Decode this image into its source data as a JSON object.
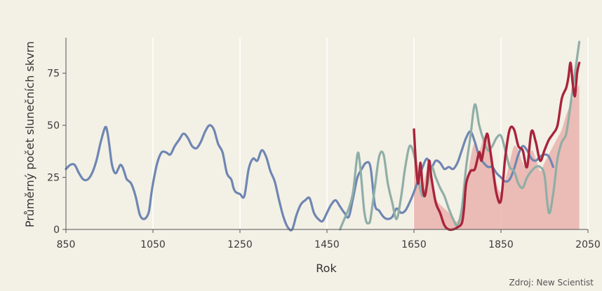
{
  "chart_data": {
    "type": "line",
    "xlabel": "Rok",
    "ylabel": "Průměrný počet slunečních skvrn",
    "source_note": "Zdroj: New Scientist",
    "xlim": [
      850,
      2050
    ],
    "ylim": [
      0,
      90
    ],
    "x_ticks": [
      850,
      1050,
      1250,
      1450,
      1650,
      1850,
      2050
    ],
    "y_ticks": [
      0,
      25,
      50,
      75
    ],
    "grid": "vertical",
    "colors": {
      "background": "#f3f0e6",
      "grid": "#ffffff",
      "blue": "#6f86b2",
      "teal": "#8faea6",
      "red": "#a8243a",
      "fill": "#e8a9a4"
    },
    "series": [
      {
        "color": "#6f86b2",
        "x": [
          850,
          860,
          870,
          880,
          890,
          900,
          910,
          920,
          930,
          940,
          945,
          950,
          955,
          960,
          965,
          970,
          975,
          980,
          985,
          990,
          1000,
          1010,
          1020,
          1030,
          1040,
          1045,
          1050,
          1060,
          1070,
          1080,
          1090,
          1100,
          1110,
          1120,
          1130,
          1140,
          1150,
          1160,
          1170,
          1180,
          1190,
          1200,
          1210,
          1220,
          1230,
          1235,
          1240,
          1250,
          1260,
          1270,
          1280,
          1290,
          1300,
          1310,
          1320,
          1330,
          1340,
          1350,
          1360,
          1370,
          1380,
          1390,
          1400,
          1410,
          1420,
          1430,
          1440,
          1450,
          1460,
          1470,
          1480,
          1490,
          1500,
          1510,
          1520,
          1530,
          1540,
          1550,
          1560,
          1570,
          1580,
          1590,
          1600,
          1610,
          1620,
          1630,
          1640,
          1650,
          1660,
          1670,
          1680,
          1690,
          1700,
          1710,
          1720,
          1730,
          1740,
          1750,
          1760,
          1770,
          1780,
          1790,
          1800,
          1810,
          1820,
          1830,
          1840,
          1850,
          1860,
          1870,
          1880,
          1890,
          1900,
          1910,
          1920,
          1930,
          1940,
          1950,
          1960,
          1970
        ],
        "y": [
          29,
          31,
          31,
          27,
          24,
          24,
          27,
          33,
          42,
          49,
          47,
          40,
          32,
          28,
          27,
          29,
          31,
          30,
          27,
          24,
          22,
          16,
          7,
          5,
          8,
          15,
          22,
          32,
          37,
          37,
          36,
          40,
          43,
          46,
          44,
          40,
          39,
          42,
          47,
          50,
          48,
          41,
          37,
          27,
          24,
          20,
          18,
          17,
          16,
          29,
          34,
          33,
          38,
          35,
          28,
          23,
          14,
          6,
          1,
          0,
          7,
          12,
          14,
          15,
          8,
          5,
          4,
          8,
          12,
          14,
          11,
          8,
          6,
          15,
          25,
          29,
          32,
          30,
          12,
          9,
          6,
          5,
          6,
          10,
          8,
          9,
          13,
          18,
          24,
          30,
          34,
          30,
          33,
          32,
          29,
          30,
          29,
          32,
          38,
          44,
          47,
          42,
          35,
          32,
          30,
          30,
          27,
          25,
          23,
          24,
          29,
          36,
          40,
          38,
          34,
          33,
          35,
          36,
          35,
          30
        ]
      },
      {
        "color": "#8faea6",
        "x": [
          1480,
          1490,
          1500,
          1510,
          1520,
          1525,
          1530,
          1535,
          1540,
          1545,
          1550,
          1560,
          1570,
          1580,
          1590,
          1600,
          1610,
          1620,
          1630,
          1640,
          1650,
          1660,
          1670,
          1680,
          1690,
          1700,
          1710,
          1720,
          1730,
          1740,
          1750,
          1760,
          1770,
          1780,
          1790,
          1800,
          1810,
          1820,
          1830,
          1840,
          1850,
          1860,
          1870,
          1880,
          1890,
          1900,
          1910,
          1920,
          1930,
          1940,
          1950,
          1960,
          1970,
          1980,
          1990,
          2000,
          2010,
          2020,
          2030
        ],
        "y": [
          0,
          5,
          10,
          18,
          36,
          33,
          22,
          10,
          4,
          3,
          5,
          20,
          35,
          36,
          22,
          13,
          5,
          15,
          30,
          40,
          36,
          24,
          16,
          21,
          30,
          25,
          20,
          16,
          10,
          5,
          2,
          10,
          30,
          45,
          60,
          50,
          43,
          38,
          40,
          44,
          45,
          38,
          30,
          28,
          22,
          20,
          25,
          28,
          30,
          30,
          26,
          8,
          17,
          34,
          42,
          46,
          60,
          75,
          90
        ]
      },
      {
        "color": "#a8243a",
        "x": [
          1650,
          1655,
          1660,
          1665,
          1670,
          1675,
          1680,
          1685,
          1690,
          1700,
          1710,
          1720,
          1730,
          1740,
          1750,
          1760,
          1765,
          1770,
          1780,
          1790,
          1800,
          1805,
          1810,
          1815,
          1820,
          1830,
          1840,
          1850,
          1860,
          1870,
          1880,
          1890,
          1900,
          1910,
          1920,
          1930,
          1940,
          1950,
          1960,
          1970,
          1980,
          1990,
          2000,
          2005,
          2010,
          2015,
          2020,
          2025,
          2030
        ],
        "y": [
          48,
          30,
          22,
          32,
          20,
          16,
          22,
          33,
          25,
          13,
          8,
          2,
          0,
          0,
          1,
          3,
          10,
          22,
          28,
          29,
          37,
          33,
          38,
          44,
          45,
          31,
          17,
          14,
          35,
          48,
          48,
          40,
          38,
          30,
          47,
          42,
          33,
          38,
          43,
          46,
          50,
          63,
          68,
          73,
          80,
          70,
          64,
          75,
          80
        ]
      }
    ],
    "filled_area": {
      "color": "#e8a9a4",
      "x": [
        1650,
        1660,
        1670,
        1680,
        1690,
        1700,
        1710,
        1720,
        1730,
        1740,
        1750,
        1760,
        1770,
        1780,
        1790,
        1800,
        1810,
        1820,
        1830,
        1840,
        1850,
        1860,
        1870,
        1880,
        1890,
        1900,
        1910,
        1920,
        1930,
        1940,
        1950,
        1960,
        1970,
        1980,
        1990,
        2000,
        2010,
        2020,
        2030
      ],
      "y": [
        40,
        30,
        22,
        28,
        24,
        15,
        12,
        10,
        8,
        5,
        4,
        10,
        20,
        34,
        42,
        38,
        44,
        45,
        36,
        22,
        18,
        24,
        32,
        40,
        38,
        32,
        30,
        38,
        34,
        28,
        32,
        36,
        40,
        44,
        48,
        55,
        60,
        65,
        70
      ]
    }
  }
}
